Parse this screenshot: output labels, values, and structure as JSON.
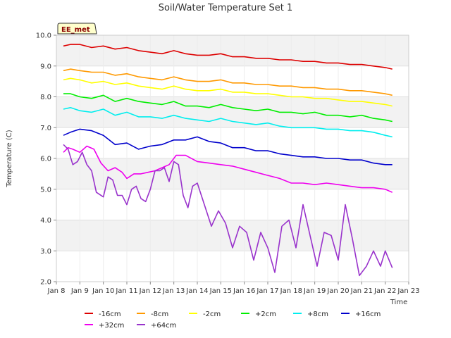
{
  "chart_data": {
    "type": "line",
    "title": "Soil/Water Temperature Set 1",
    "xlabel": "Time",
    "ylabel": "Temperature (C)",
    "badge": "EE_met",
    "xlim": [
      8,
      23
    ],
    "ylim": [
      2.0,
      10.0
    ],
    "x_ticks": [
      "Jan 8",
      "Jan 9",
      "Jan 10",
      "Jan 11",
      "Jan 12",
      "Jan 13",
      "Jan 14",
      "Jan 15",
      "Jan 16",
      "Jan 17",
      "Jan 18",
      "Jan 19",
      "Jan 20",
      "Jan 21",
      "Jan 22",
      "Jan 23"
    ],
    "y_ticks": [
      "2.0",
      "3.0",
      "4.0",
      "5.0",
      "6.0",
      "7.0",
      "8.0",
      "9.0",
      "10.0"
    ],
    "grid": true,
    "legend_position": "bottom",
    "series": [
      {
        "name": "-16cm",
        "color": "#dd0000",
        "x": [
          8.3,
          8.6,
          9.0,
          9.5,
          10.0,
          10.5,
          11.0,
          11.5,
          12.0,
          12.5,
          13.0,
          13.5,
          14.0,
          14.5,
          15.0,
          15.5,
          16.0,
          16.5,
          17.0,
          17.5,
          18.0,
          18.5,
          19.0,
          19.5,
          20.0,
          20.5,
          21.0,
          21.5,
          22.0,
          22.3
        ],
        "y": [
          9.65,
          9.7,
          9.7,
          9.6,
          9.65,
          9.55,
          9.6,
          9.5,
          9.45,
          9.4,
          9.5,
          9.4,
          9.35,
          9.35,
          9.4,
          9.3,
          9.3,
          9.25,
          9.25,
          9.2,
          9.2,
          9.15,
          9.15,
          9.1,
          9.1,
          9.05,
          9.05,
          9.0,
          8.95,
          8.9
        ]
      },
      {
        "name": "-8cm",
        "color": "#ff9900",
        "x": [
          8.3,
          8.6,
          9.0,
          9.5,
          10.0,
          10.5,
          11.0,
          11.5,
          12.0,
          12.5,
          13.0,
          13.5,
          14.0,
          14.5,
          15.0,
          15.5,
          16.0,
          16.5,
          17.0,
          17.5,
          18.0,
          18.5,
          19.0,
          19.5,
          20.0,
          20.5,
          21.0,
          21.5,
          22.0,
          22.3
        ],
        "y": [
          8.85,
          8.9,
          8.85,
          8.8,
          8.8,
          8.7,
          8.75,
          8.65,
          8.6,
          8.55,
          8.65,
          8.55,
          8.5,
          8.5,
          8.55,
          8.45,
          8.45,
          8.4,
          8.4,
          8.35,
          8.35,
          8.3,
          8.3,
          8.25,
          8.25,
          8.2,
          8.2,
          8.15,
          8.1,
          8.05
        ]
      },
      {
        "name": "-2cm",
        "color": "#ffff00",
        "x": [
          8.3,
          8.6,
          9.0,
          9.5,
          10.0,
          10.5,
          11.0,
          11.5,
          12.0,
          12.5,
          13.0,
          13.5,
          14.0,
          14.5,
          15.0,
          15.5,
          16.0,
          16.5,
          17.0,
          17.5,
          18.0,
          18.5,
          19.0,
          19.5,
          20.0,
          20.5,
          21.0,
          21.5,
          22.0,
          22.3
        ],
        "y": [
          8.55,
          8.6,
          8.55,
          8.45,
          8.5,
          8.4,
          8.45,
          8.35,
          8.3,
          8.25,
          8.35,
          8.25,
          8.2,
          8.2,
          8.25,
          8.15,
          8.15,
          8.1,
          8.1,
          8.05,
          8.0,
          8.0,
          7.95,
          7.95,
          7.9,
          7.85,
          7.85,
          7.8,
          7.75,
          7.7
        ]
      },
      {
        "name": "+2cm",
        "color": "#00ee00",
        "x": [
          8.3,
          8.6,
          9.0,
          9.5,
          10.0,
          10.5,
          11.0,
          11.5,
          12.0,
          12.5,
          13.0,
          13.5,
          14.0,
          14.5,
          15.0,
          15.5,
          16.0,
          16.5,
          17.0,
          17.5,
          18.0,
          18.5,
          19.0,
          19.5,
          20.0,
          20.5,
          21.0,
          21.5,
          22.0,
          22.3
        ],
        "y": [
          8.1,
          8.1,
          8.0,
          7.95,
          8.05,
          7.85,
          7.95,
          7.85,
          7.8,
          7.75,
          7.85,
          7.7,
          7.7,
          7.65,
          7.75,
          7.65,
          7.6,
          7.55,
          7.6,
          7.5,
          7.5,
          7.45,
          7.5,
          7.4,
          7.4,
          7.35,
          7.4,
          7.3,
          7.25,
          7.2
        ]
      },
      {
        "name": "+8cm",
        "color": "#00eeee",
        "x": [
          8.3,
          8.6,
          9.0,
          9.5,
          10.0,
          10.5,
          11.0,
          11.5,
          12.0,
          12.5,
          13.0,
          13.5,
          14.0,
          14.5,
          15.0,
          15.5,
          16.0,
          16.5,
          17.0,
          17.5,
          18.0,
          18.5,
          19.0,
          19.5,
          20.0,
          20.5,
          21.0,
          21.5,
          22.0,
          22.3
        ],
        "y": [
          7.6,
          7.65,
          7.55,
          7.5,
          7.6,
          7.4,
          7.5,
          7.35,
          7.35,
          7.3,
          7.4,
          7.3,
          7.25,
          7.2,
          7.3,
          7.2,
          7.15,
          7.1,
          7.15,
          7.05,
          7.0,
          7.0,
          7.0,
          6.95,
          6.95,
          6.9,
          6.9,
          6.85,
          6.75,
          6.7
        ]
      },
      {
        "name": "+16cm",
        "color": "#0000cc",
        "x": [
          8.3,
          8.6,
          9.0,
          9.5,
          10.0,
          10.5,
          11.0,
          11.5,
          12.0,
          12.5,
          13.0,
          13.5,
          14.0,
          14.5,
          15.0,
          15.5,
          16.0,
          16.5,
          17.0,
          17.5,
          18.0,
          18.5,
          19.0,
          19.5,
          20.0,
          20.5,
          21.0,
          21.5,
          22.0,
          22.3
        ],
        "y": [
          6.75,
          6.85,
          6.95,
          6.9,
          6.75,
          6.45,
          6.5,
          6.3,
          6.4,
          6.45,
          6.6,
          6.6,
          6.7,
          6.55,
          6.5,
          6.35,
          6.35,
          6.25,
          6.25,
          6.15,
          6.1,
          6.05,
          6.05,
          6.0,
          6.0,
          5.95,
          5.95,
          5.85,
          5.8,
          5.8
        ]
      },
      {
        "name": "+32cm",
        "color": "#ee00ee",
        "x": [
          8.3,
          8.5,
          8.7,
          9.0,
          9.3,
          9.6,
          9.9,
          10.2,
          10.5,
          10.8,
          11.0,
          11.3,
          11.6,
          11.9,
          12.2,
          12.5,
          12.8,
          13.1,
          13.5,
          14.0,
          14.5,
          15.0,
          15.5,
          16.0,
          16.5,
          17.0,
          17.5,
          18.0,
          18.5,
          19.0,
          19.5,
          20.0,
          20.5,
          21.0,
          21.5,
          22.0,
          22.3
        ],
        "y": [
          6.2,
          6.35,
          6.3,
          6.2,
          6.4,
          6.3,
          5.85,
          5.6,
          5.7,
          5.55,
          5.35,
          5.5,
          5.5,
          5.55,
          5.6,
          5.7,
          5.8,
          6.1,
          6.1,
          5.9,
          5.85,
          5.8,
          5.75,
          5.65,
          5.55,
          5.45,
          5.35,
          5.2,
          5.2,
          5.15,
          5.2,
          5.15,
          5.1,
          5.05,
          5.05,
          5.0,
          4.9
        ]
      },
      {
        "name": "+64cm",
        "color": "#9933cc",
        "x": [
          8.3,
          8.5,
          8.7,
          8.9,
          9.1,
          9.3,
          9.5,
          9.7,
          10.0,
          10.2,
          10.4,
          10.6,
          10.8,
          11.0,
          11.2,
          11.4,
          11.6,
          11.8,
          12.0,
          12.2,
          12.4,
          12.6,
          12.8,
          13.0,
          13.2,
          13.4,
          13.6,
          13.8,
          14.0,
          14.3,
          14.6,
          14.9,
          15.2,
          15.5,
          15.8,
          16.1,
          16.4,
          16.7,
          17.0,
          17.3,
          17.6,
          17.9,
          18.2,
          18.5,
          18.8,
          19.1,
          19.4,
          19.7,
          20.0,
          20.3,
          20.6,
          20.9,
          21.2,
          21.5,
          21.8,
          22.0,
          22.3
        ],
        "y": [
          6.45,
          6.3,
          5.8,
          5.9,
          6.2,
          5.8,
          5.6,
          4.9,
          4.75,
          5.4,
          5.3,
          4.8,
          4.8,
          4.5,
          5.0,
          5.1,
          4.7,
          4.6,
          5.0,
          5.6,
          5.6,
          5.7,
          5.25,
          5.9,
          5.8,
          4.8,
          4.4,
          5.1,
          5.2,
          4.5,
          3.8,
          4.3,
          3.9,
          3.1,
          3.8,
          3.6,
          2.7,
          3.6,
          3.1,
          2.3,
          3.8,
          4.0,
          3.1,
          4.5,
          3.5,
          2.5,
          3.6,
          3.5,
          2.7,
          4.5,
          3.4,
          2.2,
          2.5,
          3.0,
          2.5,
          3.0,
          2.45
        ]
      }
    ]
  }
}
